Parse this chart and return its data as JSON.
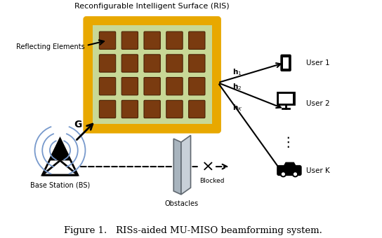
{
  "title": "Figure 1.   RISs-aided MU-MISO beamforming system.",
  "ris_label": "Reconfigurable Intelligent Surface (RIS)",
  "reflecting_elements_label": "Reflecting Elements",
  "bs_label": "Base Station (BS)",
  "obstacles_label": "Obstacles",
  "blocked_label": "Blocked",
  "user_labels": [
    "User 1",
    "User 2",
    "User K"
  ],
  "G_label": "G",
  "ris_bg_color": "#c8d896",
  "ris_border_color": "#e8a800",
  "element_color": "#7a3b10",
  "element_border_color": "#4a2005",
  "background_color": "#ffffff",
  "wave_color": "#7799cc",
  "fig_width": 5.44,
  "fig_height": 3.4,
  "dpi": 100
}
